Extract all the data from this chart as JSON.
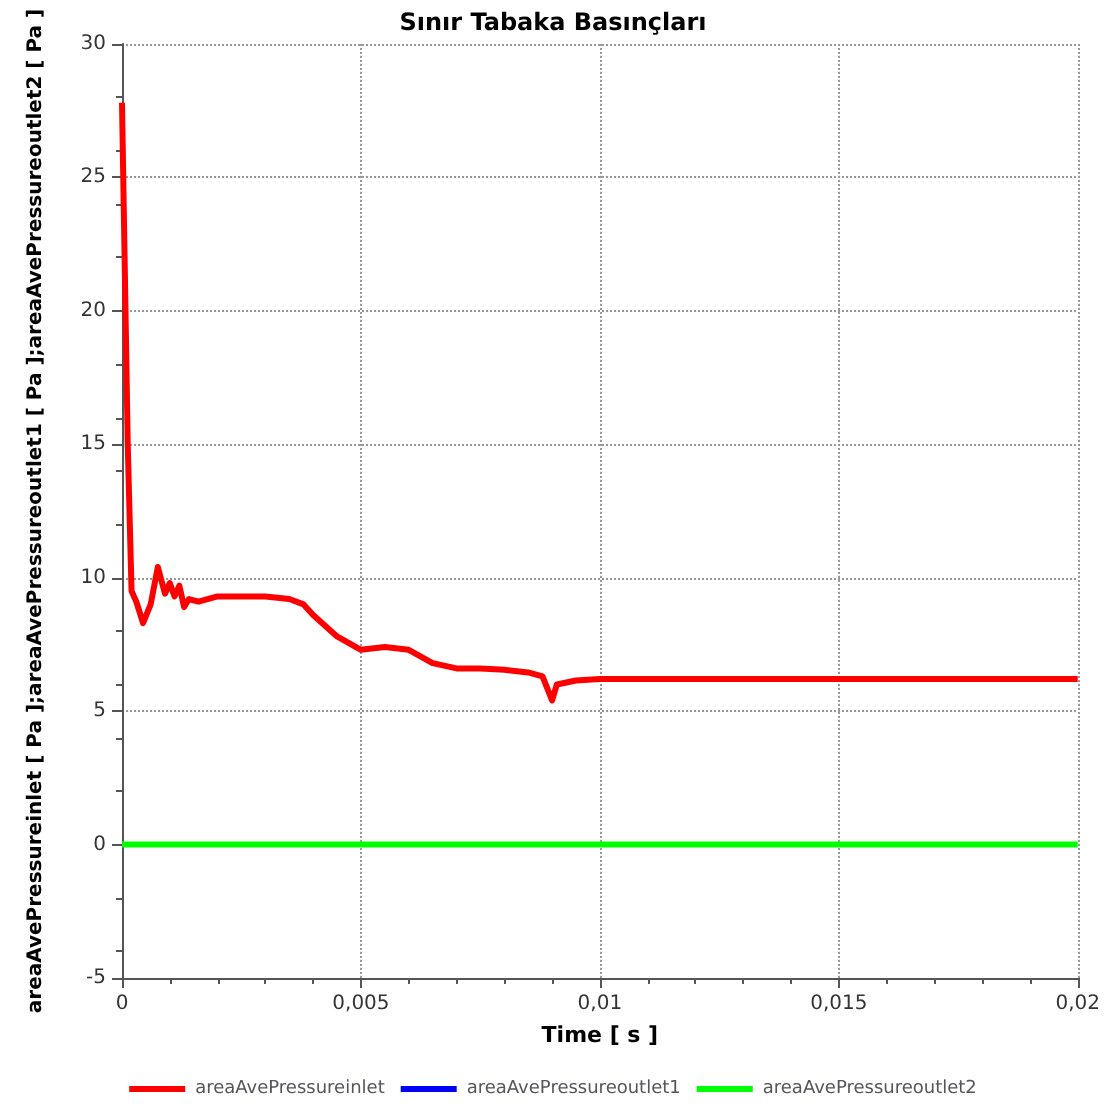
{
  "chart_data": {
    "type": "line",
    "title": "Sınır Tabaka Basınçları",
    "xlabel": "Time [ s ]",
    "ylabel": "areaAvePressureinlet [ Pa ];areaAvePressureoutlet1 [ Pa ];areaAvePressureoutlet2 [ Pa ]",
    "xlim": [
      0,
      0.02
    ],
    "xticks": [
      0,
      {
        "value": 0.005,
        "label": "0,005"
      },
      {
        "value": 0.01,
        "label": "0,01"
      },
      {
        "value": 0.015,
        "label": "0,015"
      },
      {
        "value": 0.02,
        "label": "0,02"
      }
    ],
    "ylim": [
      -5,
      30
    ],
    "yticks": [
      -5,
      0,
      5,
      10,
      15,
      20,
      25,
      30
    ],
    "grid": true,
    "legend": "bottom",
    "marker": "none",
    "line_style": "solid",
    "series": [
      {
        "name": "areaAvePressureinlet",
        "color": "#ff0000",
        "x": [
          0,
          2e-05,
          0.00012,
          0.0002,
          0.0003,
          0.00044,
          0.0006,
          0.00075,
          0.0009,
          0.001,
          0.0011,
          0.0012,
          0.0013,
          0.0014,
          0.0016,
          0.002,
          0.0025,
          0.003,
          0.0035,
          0.0038,
          0.004,
          0.0045,
          0.005,
          0.0055,
          0.006,
          0.0065,
          0.007,
          0.0075,
          0.008,
          0.0085,
          0.0088,
          0.009,
          0.0091,
          0.0095,
          0.01,
          0.015,
          0.02
        ],
        "values": [
          27.8,
          27.8,
          15,
          9.5,
          9.1,
          8.3,
          9,
          10.4,
          9.4,
          9.8,
          9.3,
          9.7,
          8.9,
          9.2,
          9.1,
          9.3,
          9.3,
          9.3,
          9.2,
          9,
          8.6,
          7.8,
          7.3,
          7.4,
          7.3,
          6.8,
          6.6,
          6.6,
          6.55,
          6.45,
          6.3,
          5.4,
          6,
          6.15,
          6.2,
          6.2,
          6.2
        ]
      },
      {
        "name": "areaAvePressureoutlet1",
        "color": "#0000ff"
      },
      {
        "name": "areaAvePressureoutlet2",
        "color": "#00ff00",
        "x": [
          0,
          0.02
        ],
        "values": [
          0,
          0
        ]
      }
    ]
  }
}
